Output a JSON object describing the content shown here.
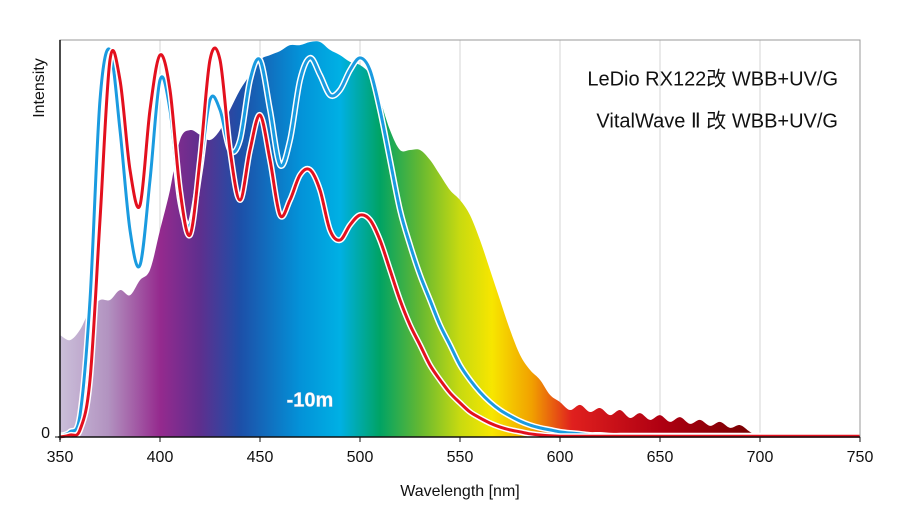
{
  "chart_data": {
    "type": "line",
    "y_label": "Intensity",
    "x_label": "Wavelength [nm]",
    "x": [
      350,
      355,
      360,
      365,
      370,
      375,
      380,
      385,
      390,
      395,
      400,
      405,
      410,
      415,
      420,
      425,
      430,
      435,
      440,
      445,
      450,
      455,
      460,
      465,
      470,
      475,
      480,
      485,
      490,
      495,
      500,
      505,
      510,
      515,
      520,
      525,
      530,
      535,
      540,
      545,
      550,
      555,
      560,
      565,
      570,
      575,
      580,
      585,
      590,
      595,
      600,
      605,
      610,
      615,
      620,
      625,
      630,
      635,
      640,
      645,
      650,
      655,
      660,
      665,
      670,
      675,
      680,
      685,
      690,
      695,
      700,
      705,
      710,
      715,
      720,
      725,
      730,
      735,
      740,
      745,
      750
    ],
    "series": [
      {
        "name": "-10m",
        "type": "area",
        "values": [
          25.7,
          24.4,
          27.0,
          32.0,
          34.5,
          34.5,
          37.0,
          35.7,
          39.5,
          42.1,
          52.1,
          62.2,
          74.8,
          77.3,
          76.1,
          74.8,
          77.3,
          82.4,
          87.4,
          91.2,
          95.0,
          96.2,
          97.2,
          98.7,
          98.7,
          99.5,
          99.5,
          97.5,
          96.2,
          94.5,
          93.7,
          91.2,
          84.9,
          77.3,
          72.3,
          72.3,
          72.3,
          69.8,
          66.0,
          62.2,
          59.7,
          55.9,
          49.6,
          42.1,
          34.5,
          27.0,
          20.7,
          16.9,
          14.4,
          10.6,
          8.8,
          6.8,
          8.1,
          6.3,
          7.3,
          5.5,
          6.8,
          4.8,
          6.0,
          4.3,
          5.5,
          3.8,
          5.0,
          3.3,
          4.3,
          2.8,
          3.8,
          2.3,
          3.0,
          1.3,
          0,
          0,
          0,
          0,
          0,
          0,
          0,
          0,
          0,
          0,
          0
        ]
      },
      {
        "name": "LeDio RX122改 WBB+UV/G",
        "type": "line",
        "color": "#e3101e",
        "values": [
          0,
          0.5,
          1.8,
          14.4,
          54.7,
          95.0,
          89.9,
          67.3,
          58.4,
          82.4,
          96.2,
          87.4,
          62.2,
          50.9,
          69.8,
          95.0,
          95.0,
          72.3,
          59.7,
          72.3,
          81.1,
          69.8,
          55.9,
          59.7,
          66.0,
          67.3,
          62.2,
          52.1,
          49.6,
          53.4,
          55.9,
          54.7,
          49.6,
          42.1,
          34.5,
          28.2,
          23.2,
          18.1,
          14.4,
          11.1,
          8.6,
          6.3,
          4.8,
          3.5,
          2.5,
          1.8,
          1.3,
          0.8,
          0.5,
          0.3,
          0.2,
          0.2,
          0.2,
          0.2,
          0.2,
          0.2,
          0.2,
          0.2,
          0.2,
          0.2,
          0.2,
          0.2,
          0.2,
          0.2,
          0.2,
          0.2,
          0.2,
          0.2,
          0.2,
          0.2,
          0.2,
          0.2,
          0.2,
          0.2,
          0.2,
          0.2,
          0.2,
          0.2,
          0.2,
          0.2,
          0.2
        ]
      },
      {
        "name": "VitalWave Ⅱ 改 WBB+UV/G",
        "type": "line",
        "color": "#1a9be0",
        "values": [
          0.3,
          1.3,
          5.5,
          34.5,
          84.9,
          97.5,
          77.3,
          52.1,
          43.3,
          64.7,
          89.9,
          82.4,
          59.7,
          53.4,
          67.3,
          84.9,
          82.4,
          72.3,
          74.8,
          89.9,
          95.0,
          82.4,
          68.5,
          74.8,
          89.9,
          95.5,
          91.2,
          86.1,
          87.4,
          92.4,
          95.5,
          92.4,
          82.4,
          69.8,
          57.2,
          48.4,
          40.8,
          34.5,
          28.2,
          23.2,
          18.1,
          14.4,
          11.3,
          8.8,
          6.8,
          5.3,
          4.0,
          3.0,
          2.3,
          1.8,
          1.3,
          1.0,
          0.8,
          0.5,
          0.5,
          0.3,
          0.3,
          0.3,
          0.3,
          0.3,
          0.3,
          0.3,
          0.3,
          0.3,
          0.3,
          0.3,
          0.3,
          0.3,
          0.3,
          0.3,
          0.3,
          0.3,
          0.3,
          0.3,
          0.3,
          0.3,
          0.3,
          0.3,
          0.3,
          0.3,
          0.3
        ]
      }
    ],
    "xlim": [
      350,
      750
    ],
    "ylim": [
      0,
      100
    ],
    "xticks": [
      350,
      400,
      450,
      500,
      550,
      600,
      650,
      700,
      750
    ],
    "yticks": [
      0
    ],
    "grid": true
  }
}
